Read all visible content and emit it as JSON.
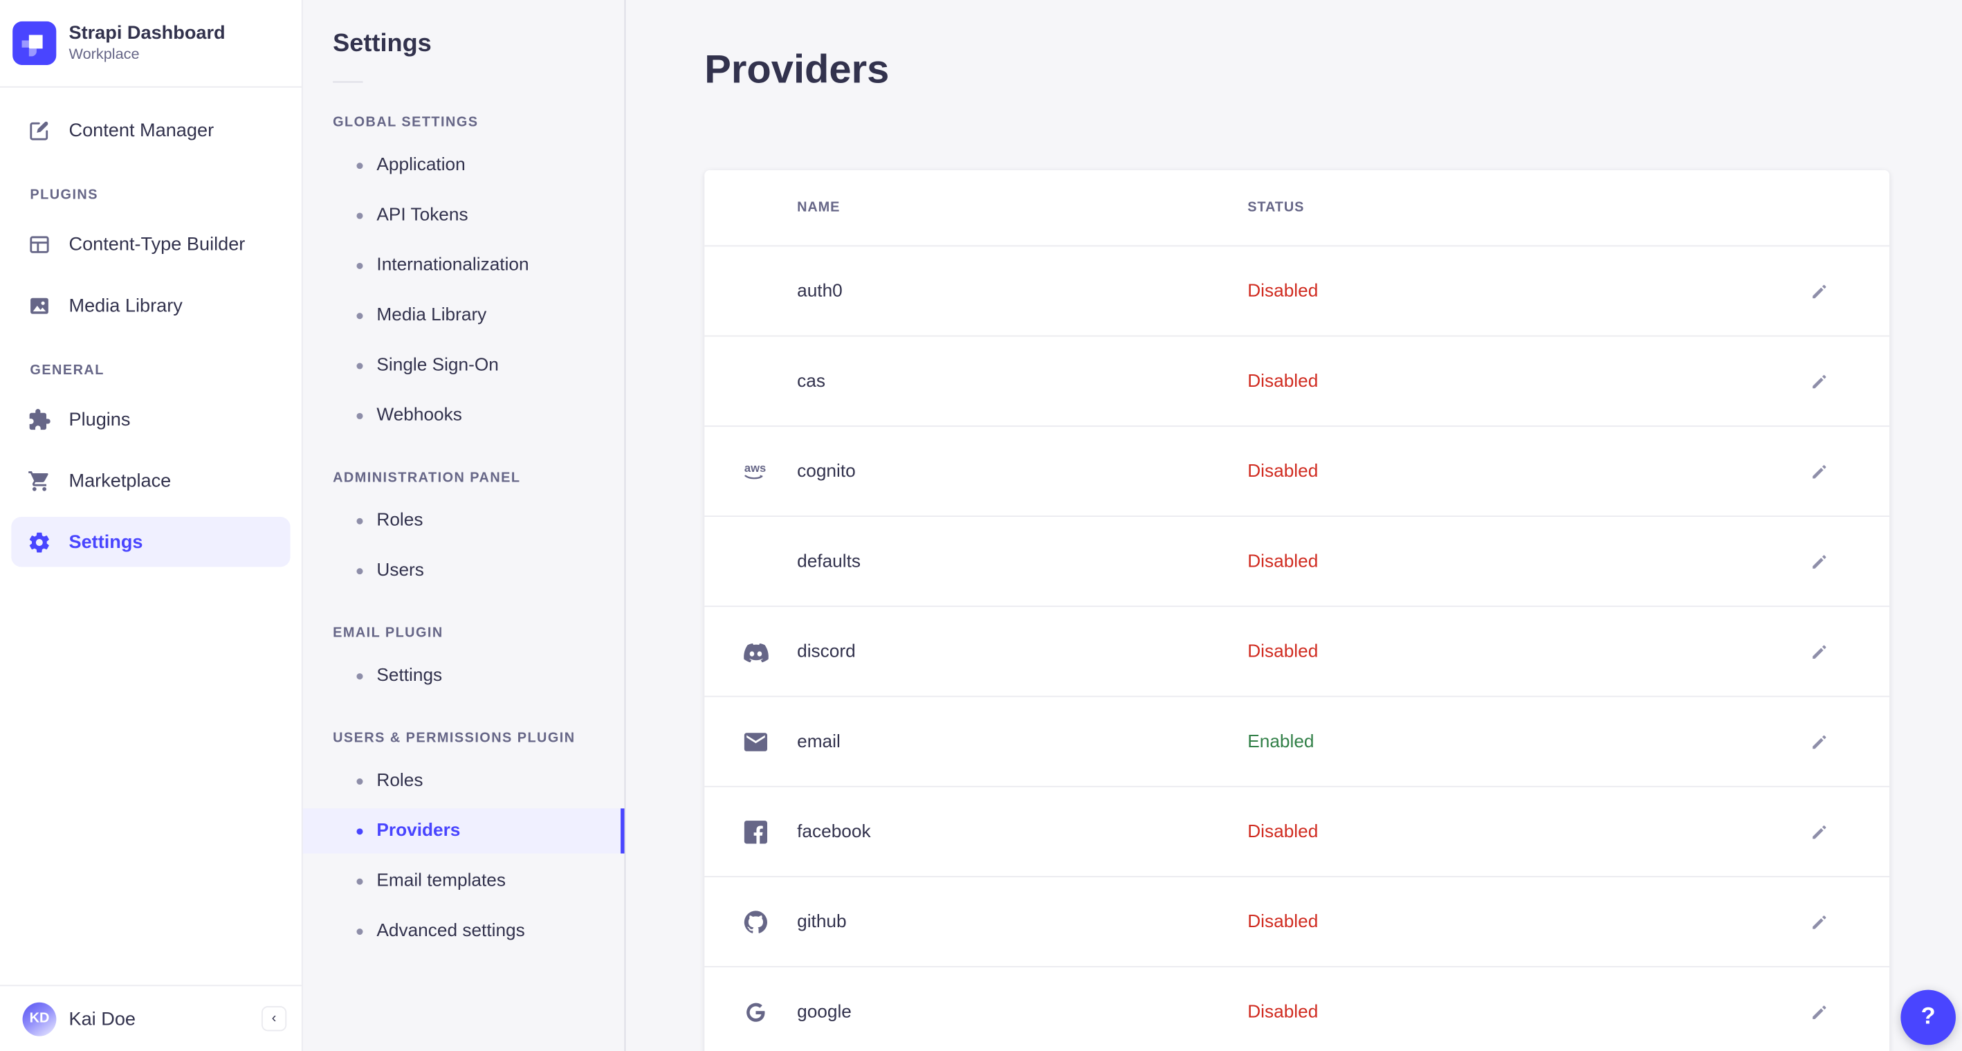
{
  "app": {
    "name": "Strapi Dashboard",
    "workspace": "Workplace"
  },
  "colors": {
    "primary": "#4945FF",
    "primary_light": "#F0F0FF",
    "status": {
      "Enabled": "#328048",
      "Disabled": "#D02B20"
    },
    "icon_gray": "#666687"
  },
  "left_nav": {
    "sections": [
      {
        "label": null,
        "items": [
          {
            "label": "Content Manager",
            "icon": "content-manager"
          }
        ]
      },
      {
        "label": "PLUGINS",
        "items": [
          {
            "label": "Content-Type Builder",
            "icon": "content-type-builder"
          },
          {
            "label": "Media Library",
            "icon": "media-library"
          }
        ]
      },
      {
        "label": "GENERAL",
        "items": [
          {
            "label": "Plugins",
            "icon": "plugins"
          },
          {
            "label": "Marketplace",
            "icon": "marketplace"
          },
          {
            "label": "Settings",
            "icon": "settings",
            "active": true
          }
        ]
      }
    ],
    "user": {
      "name": "Kai Doe",
      "initials": "KD"
    },
    "collapse_glyph": "‹"
  },
  "subnav": {
    "title": "Settings",
    "sections": [
      {
        "label": "GLOBAL SETTINGS",
        "items": [
          "Application",
          "API Tokens",
          "Internationalization",
          "Media Library",
          "Single Sign-On",
          "Webhooks"
        ]
      },
      {
        "label": "ADMINISTRATION PANEL",
        "items": [
          "Roles",
          "Users"
        ]
      },
      {
        "label": "EMAIL PLUGIN",
        "items": [
          "Settings"
        ]
      },
      {
        "label": "USERS & PERMISSIONS PLUGIN",
        "items": [
          "Roles",
          "Providers",
          "Email templates",
          "Advanced settings"
        ],
        "active": "Providers"
      }
    ]
  },
  "main": {
    "title": "Providers",
    "table": {
      "columns": [
        "NAME",
        "STATUS"
      ],
      "rows": [
        {
          "name": "auth0",
          "icon": null,
          "status": "Disabled"
        },
        {
          "name": "cas",
          "icon": null,
          "status": "Disabled"
        },
        {
          "name": "cognito",
          "icon": "aws",
          "status": "Disabled"
        },
        {
          "name": "defaults",
          "icon": null,
          "status": "Disabled"
        },
        {
          "name": "discord",
          "icon": "discord",
          "status": "Disabled"
        },
        {
          "name": "email",
          "icon": "email",
          "status": "Enabled"
        },
        {
          "name": "facebook",
          "icon": "facebook",
          "status": "Disabled"
        },
        {
          "name": "github",
          "icon": "github",
          "status": "Disabled"
        },
        {
          "name": "google",
          "icon": "google",
          "status": "Disabled"
        }
      ]
    },
    "help_label": "?"
  }
}
